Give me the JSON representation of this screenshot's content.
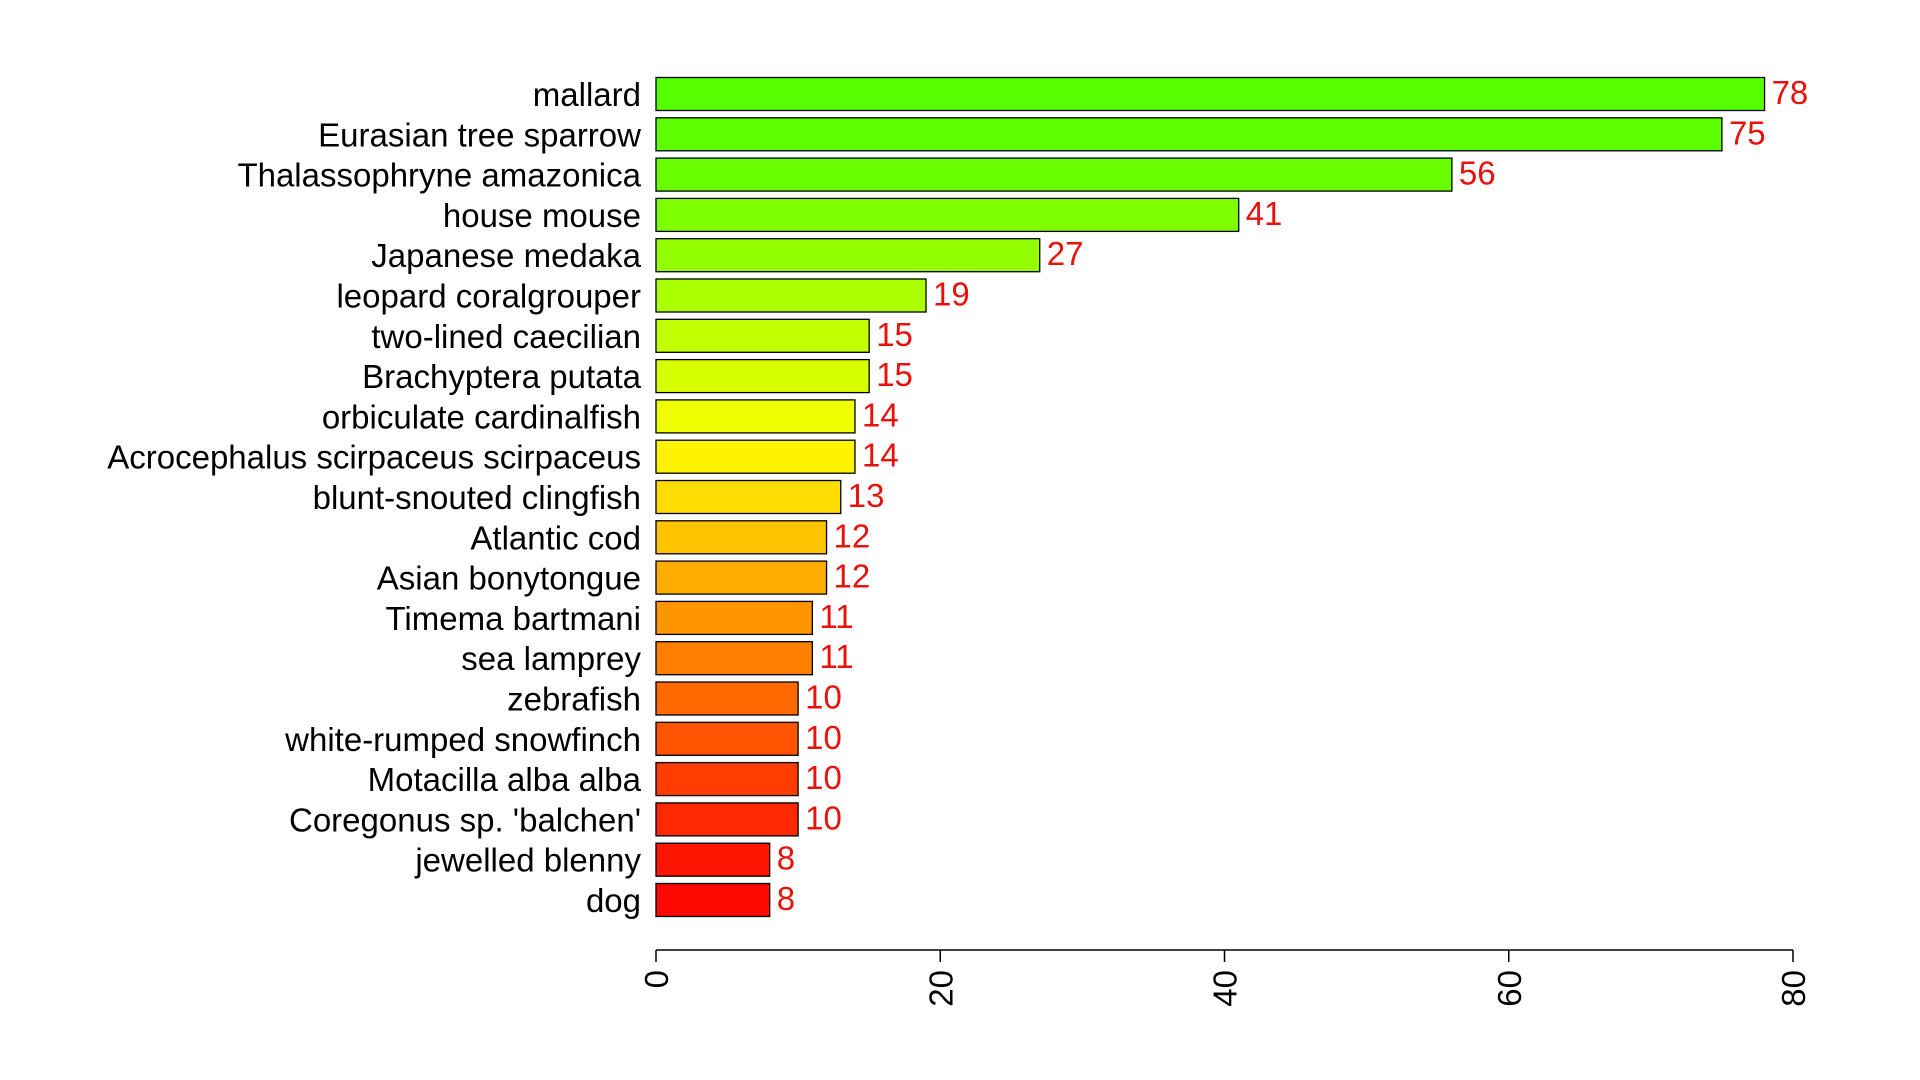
{
  "chart_data": {
    "type": "bar",
    "orientation": "horizontal",
    "title": "",
    "xlabel": "",
    "ylabel": "",
    "xlim": [
      0,
      80
    ],
    "xticks": [
      0,
      20,
      40,
      60,
      80
    ],
    "grid": false,
    "legend": "none",
    "categories": [
      "mallard",
      "Eurasian tree sparrow",
      "Thalassophryne amazonica",
      "house mouse",
      "Japanese medaka",
      "leopard coralgrouper",
      "two-lined caecilian",
      "Brachyptera putata",
      "orbiculate cardinalfish",
      "Acrocephalus scirpaceus scirpaceus",
      "blunt-snouted clingfish",
      "Atlantic cod",
      "Asian bonytongue",
      "Timema bartmani",
      "sea lamprey",
      "zebrafish",
      "white-rumped snowfinch",
      "Motacilla alba alba",
      "Coregonus sp. 'balchen'",
      "jewelled blenny",
      "dog"
    ],
    "values": [
      78,
      75,
      56,
      41,
      27,
      19,
      15,
      15,
      14,
      14,
      13,
      12,
      12,
      11,
      11,
      10,
      10,
      10,
      10,
      8,
      8
    ],
    "colors": [
      "#55ff00",
      "#5dff00",
      "#6aff00",
      "#7dff00",
      "#94ff00",
      "#aaff00",
      "#c1ff00",
      "#d8ff00",
      "#f0ff00",
      "#fff300",
      "#ffdc00",
      "#ffc400",
      "#ffad00",
      "#ff9600",
      "#ff8000",
      "#ff6900",
      "#ff5300",
      "#ff3d00",
      "#ff2800",
      "#ff1500",
      "#ff0800"
    ],
    "value_label_color": "#e8120c"
  }
}
